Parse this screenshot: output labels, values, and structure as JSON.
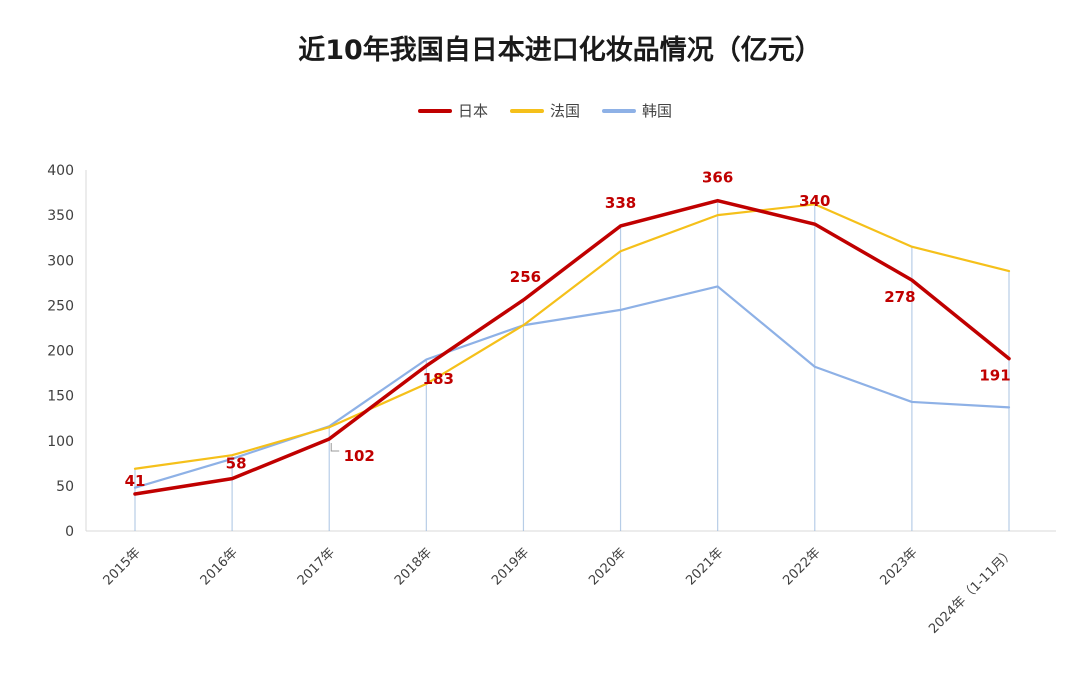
{
  "chart_data": {
    "type": "line",
    "title": "近10年我国自日本进口化妆品情况（亿元）",
    "categories": [
      "2015年",
      "2016年",
      "2017年",
      "2018年",
      "2019年",
      "2020年",
      "2021年",
      "2022年",
      "2023年",
      "2024年（1-11月）"
    ],
    "ylim": [
      0,
      400
    ],
    "yticks": [
      0,
      50,
      100,
      150,
      200,
      250,
      300,
      350,
      400
    ],
    "grid": false,
    "legend_position": "top-center",
    "series": [
      {
        "name": "日本",
        "color": "#c00000",
        "values": [
          41,
          58,
          102,
          183,
          256,
          338,
          366,
          340,
          278,
          191
        ],
        "data_labels": [
          "41",
          "58",
          "102",
          "183",
          "256",
          "338",
          "366",
          "340",
          "278",
          "191"
        ]
      },
      {
        "name": "法国",
        "color": "#f5c01a",
        "values": [
          69,
          84,
          115,
          163,
          228,
          310,
          350,
          362,
          315,
          288
        ]
      },
      {
        "name": "韩国",
        "color": "#8eb1e6",
        "values": [
          48,
          80,
          116,
          190,
          228,
          245,
          271,
          182,
          143,
          137
        ]
      }
    ]
  }
}
